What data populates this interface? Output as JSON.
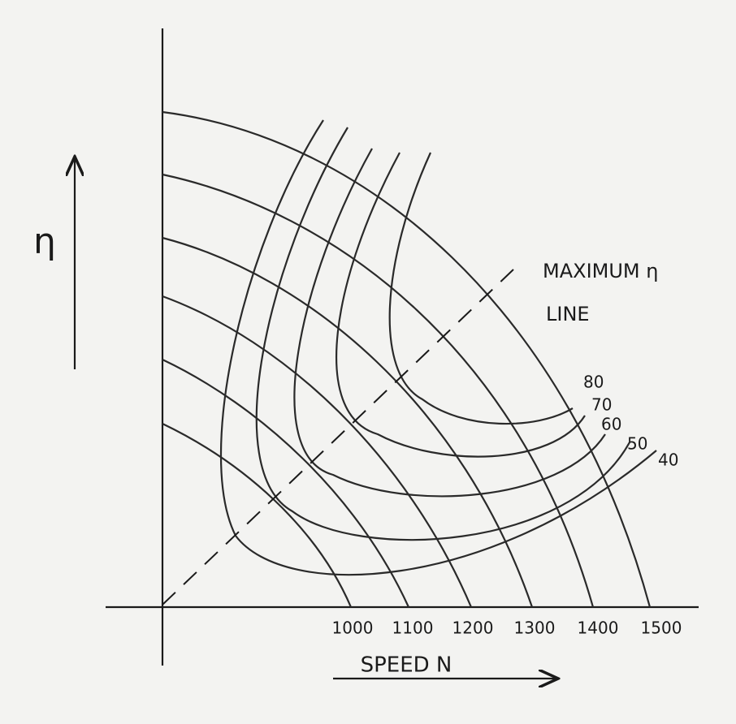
{
  "axis_label_y": "η",
  "axis_label_x": "SPEED N",
  "speed_labels": [
    "1000",
    "1100",
    "1200",
    "1300",
    "1400",
    "1500"
  ],
  "efficiency_labels": [
    "80",
    "70",
    "60",
    "50",
    "40"
  ],
  "annotation": {
    "line1": "MAXIMUM η",
    "line2": "LINE"
  }
}
